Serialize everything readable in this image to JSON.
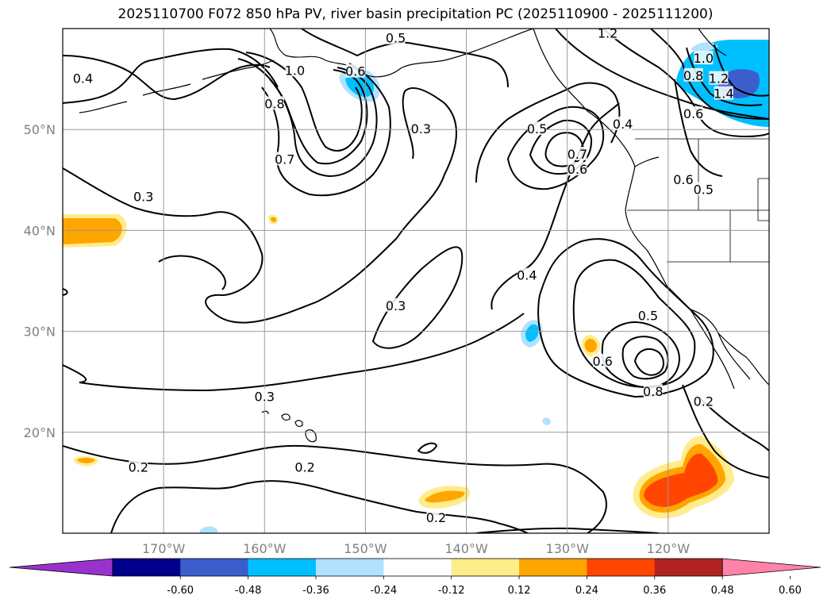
{
  "title": "2025110700 F072 850 hPa PV, river basin precipitation PC (2025110900 - 2025111200)",
  "map": {
    "projection": "cylindrical",
    "lon_range": [
      -180,
      -110
    ],
    "lat_range": [
      10,
      60
    ],
    "grid": true,
    "lon_ticks": [
      {
        "value": -170,
        "label": "170°W"
      },
      {
        "value": -160,
        "label": "160°W"
      },
      {
        "value": -150,
        "label": "150°W"
      },
      {
        "value": -140,
        "label": "140°W"
      },
      {
        "value": -130,
        "label": "130°W"
      },
      {
        "value": -120,
        "label": "120°W"
      }
    ],
    "lat_ticks": [
      {
        "value": 50,
        "label": "50°N"
      },
      {
        "value": 40,
        "label": "40°N"
      },
      {
        "value": 30,
        "label": "30°N"
      },
      {
        "value": 20,
        "label": "20°N"
      }
    ],
    "contour_labels": [
      {
        "text": "0.5",
        "lon": -147,
        "lat": 59
      },
      {
        "text": "1.2",
        "lon": -126,
        "lat": 59.5
      },
      {
        "text": "0.4",
        "lon": -178,
        "lat": 55
      },
      {
        "text": "1.0",
        "lon": -157,
        "lat": 55.8
      },
      {
        "text": "0.6",
        "lon": -151,
        "lat": 55.7
      },
      {
        "text": "0.8",
        "lon": -159,
        "lat": 52.5
      },
      {
        "text": "0.3",
        "lon": -144.5,
        "lat": 50
      },
      {
        "text": "0.7",
        "lon": -158,
        "lat": 47
      },
      {
        "text": "0.5",
        "lon": -133,
        "lat": 50
      },
      {
        "text": "0.7",
        "lon": -129,
        "lat": 47.5
      },
      {
        "text": "0.6",
        "lon": -129,
        "lat": 46
      },
      {
        "text": "0.4",
        "lon": -124.5,
        "lat": 50.5
      },
      {
        "text": "0.6",
        "lon": -118.5,
        "lat": 45
      },
      {
        "text": "0.5",
        "lon": -116.5,
        "lat": 44
      },
      {
        "text": "0.8",
        "lon": -117.5,
        "lat": 55.3
      },
      {
        "text": "1.0",
        "lon": -116.5,
        "lat": 57
      },
      {
        "text": "1.2",
        "lon": -115,
        "lat": 55
      },
      {
        "text": "1.4",
        "lon": -114.5,
        "lat": 53.5
      },
      {
        "text": "0.6",
        "lon": -117.5,
        "lat": 51.5
      },
      {
        "text": "0.3",
        "lon": -172,
        "lat": 43.3
      },
      {
        "text": "0.4",
        "lon": -134,
        "lat": 35.5
      },
      {
        "text": "0.3",
        "lon": -147,
        "lat": 32.5
      },
      {
        "text": "0.5",
        "lon": -122,
        "lat": 31.5
      },
      {
        "text": "0.6",
        "lon": -126.5,
        "lat": 27
      },
      {
        "text": "0.8",
        "lon": -121.5,
        "lat": 24
      },
      {
        "text": "0.3",
        "lon": -160,
        "lat": 23.5
      },
      {
        "text": "0.2",
        "lon": -116.5,
        "lat": 23
      },
      {
        "text": "0.2",
        "lon": -172.5,
        "lat": 16.5
      },
      {
        "text": "0.2",
        "lon": -156,
        "lat": 16.5
      },
      {
        "text": "0.2",
        "lon": -143,
        "lat": 11.5
      }
    ]
  },
  "colorbar": {
    "levels": [
      "-0.60",
      "-0.48",
      "-0.36",
      "-0.24",
      "-0.12",
      "0.12",
      "0.24",
      "0.36",
      "0.48",
      "0.60"
    ],
    "colors": [
      "#9932cc",
      "#00008b",
      "#3a5fcd",
      "#00bfff",
      "#b0e2ff",
      "#ffffff",
      "#ffec8b",
      "#ffa500",
      "#ff4500",
      "#b22222",
      "#ff83a8"
    ],
    "extend": "both"
  }
}
